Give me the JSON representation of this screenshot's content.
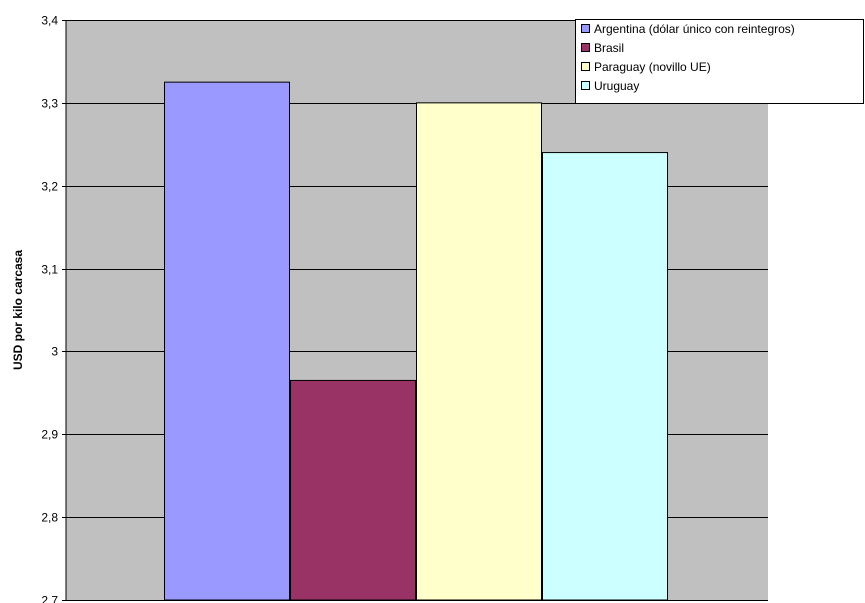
{
  "chart_data": {
    "type": "bar",
    "title": "",
    "xlabel": "",
    "ylabel": "USD por kilo carcasa",
    "ylim": [
      2.7,
      3.4
    ],
    "yticks": [
      2.7,
      2.8,
      2.9,
      3.0,
      3.1,
      3.2,
      3.3,
      3.4
    ],
    "ytick_labels": [
      "2,7",
      "2,8",
      "2,9",
      "3",
      "3,1",
      "3,2",
      "3,3",
      "3,4"
    ],
    "grid": true,
    "legend_position": "top-right",
    "plot_background": "#c0c0c0",
    "series": [
      {
        "name": "Argentina (dólar único con reintegros)",
        "values": [
          3.325
        ],
        "color": "#9999ff"
      },
      {
        "name": "Brasil",
        "values": [
          2.965
        ],
        "color": "#993366"
      },
      {
        "name": "Paraguay (novillo UE)",
        "values": [
          3.3
        ],
        "color": "#ffffcc"
      },
      {
        "name": "Uruguay",
        "values": [
          3.24
        ],
        "color": "#ccffff"
      }
    ]
  }
}
